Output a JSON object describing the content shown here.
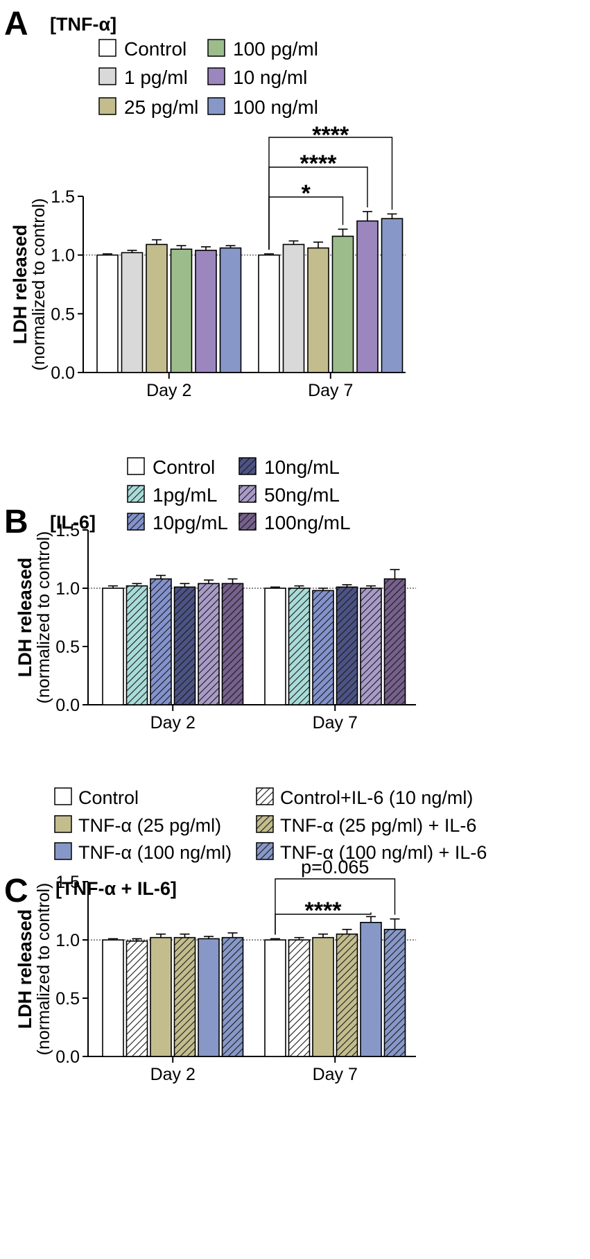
{
  "figure": {
    "panels": [
      {
        "letter": "A",
        "title": "[TNF-α]"
      },
      {
        "letter": "B",
        "title": "[IL-6]"
      },
      {
        "letter": "C",
        "title": "[TNF-α + IL-6]"
      }
    ]
  },
  "chart_data": [
    {
      "type": "bar",
      "panel": "A",
      "title": "[TNF-α]",
      "ylabel": "LDH released",
      "ylabel_sub": "(normalized to control)",
      "xlabel": "",
      "ylim": [
        0,
        1.5
      ],
      "yticks": [
        "0.0",
        "0.5",
        "1.0",
        "1.5"
      ],
      "reference_line": 1.0,
      "categories": [
        "Day 2",
        "Day 7"
      ],
      "series": [
        {
          "name": "Control",
          "color": "#ffffff",
          "pattern": "solid",
          "values": [
            1.0,
            1.0
          ],
          "errors": [
            0.01,
            0.01
          ]
        },
        {
          "name": "1 pg/ml",
          "color": "#d9d9d9",
          "pattern": "solid",
          "values": [
            1.02,
            1.09
          ],
          "errors": [
            0.02,
            0.03
          ]
        },
        {
          "name": "25 pg/ml",
          "color": "#c3bd8e",
          "pattern": "solid",
          "values": [
            1.09,
            1.06
          ],
          "errors": [
            0.04,
            0.05
          ]
        },
        {
          "name": "100 pg/ml",
          "color": "#9cbc8c",
          "pattern": "solid",
          "values": [
            1.05,
            1.16
          ],
          "errors": [
            0.03,
            0.06
          ]
        },
        {
          "name": "10 ng/ml",
          "color": "#9b86be",
          "pattern": "solid",
          "values": [
            1.04,
            1.29
          ],
          "errors": [
            0.03,
            0.08
          ]
        },
        {
          "name": "100 ng/ml",
          "color": "#8798c8",
          "pattern": "solid",
          "values": [
            1.06,
            1.31
          ],
          "errors": [
            0.02,
            0.04
          ]
        }
      ],
      "annotations": [
        {
          "group": 1,
          "from_series": 0,
          "to_series": 3,
          "label": "*"
        },
        {
          "group": 1,
          "from_series": 0,
          "to_series": 4,
          "label": "****"
        },
        {
          "group": 1,
          "from_series": 0,
          "to_series": 5,
          "label": "****"
        }
      ]
    },
    {
      "type": "bar",
      "panel": "B",
      "title": "[IL-6]",
      "ylabel": "LDH released",
      "ylabel_sub": "(normalized to control)",
      "xlabel": "",
      "ylim": [
        0,
        1.5
      ],
      "yticks": [
        "0.0",
        "0.5",
        "1.0",
        "1.5"
      ],
      "reference_line": 1.0,
      "categories": [
        "Day 2",
        "Day 7"
      ],
      "series": [
        {
          "name": "Control",
          "color": "#ffffff",
          "pattern": "solid",
          "values": [
            1.0,
            1.0
          ],
          "errors": [
            0.02,
            0.01
          ]
        },
        {
          "name": "1pg/mL",
          "color": "#a8dcd8",
          "pattern": "hatch",
          "values": [
            1.02,
            1.0
          ],
          "errors": [
            0.02,
            0.02
          ]
        },
        {
          "name": "10pg/mL",
          "color": "#8392cc",
          "pattern": "hatch",
          "values": [
            1.08,
            0.98
          ],
          "errors": [
            0.03,
            0.02
          ]
        },
        {
          "name": "10ng/mL",
          "color": "#4c5384",
          "pattern": "hatch",
          "values": [
            1.01,
            1.01
          ],
          "errors": [
            0.03,
            0.02
          ]
        },
        {
          "name": "50ng/mL",
          "color": "#a99bc8",
          "pattern": "hatch",
          "values": [
            1.04,
            1.0
          ],
          "errors": [
            0.03,
            0.02
          ]
        },
        {
          "name": "100ng/mL",
          "color": "#76608c",
          "pattern": "hatch",
          "values": [
            1.04,
            1.08
          ],
          "errors": [
            0.04,
            0.08
          ]
        }
      ],
      "annotations": []
    },
    {
      "type": "bar",
      "panel": "C",
      "title": "[TNF-α + IL-6]",
      "ylabel": "LDH released",
      "ylabel_sub": "(normalized to control)",
      "xlabel": "",
      "ylim": [
        0,
        1.5
      ],
      "yticks": [
        "0.0",
        "0.5",
        "1.0",
        "1.5"
      ],
      "reference_line": 1.0,
      "categories": [
        "Day 2",
        "Day 7"
      ],
      "series": [
        {
          "name": "Control",
          "color": "#ffffff",
          "pattern": "solid",
          "values": [
            1.0,
            1.0
          ],
          "errors": [
            0.01,
            0.01
          ]
        },
        {
          "name": "Control+IL-6 (10 ng/ml)",
          "color": "#ffffff",
          "pattern": "hatch",
          "values": [
            0.99,
            1.0
          ],
          "errors": [
            0.02,
            0.02
          ]
        },
        {
          "name": "TNF-α (25 pg/ml)",
          "color": "#c3bd8e",
          "pattern": "solid",
          "values": [
            1.02,
            1.02
          ],
          "errors": [
            0.03,
            0.03
          ]
        },
        {
          "name": "TNF-α (25 pg/ml) + IL-6",
          "color": "#c3bd8e",
          "pattern": "hatch",
          "values": [
            1.02,
            1.05
          ],
          "errors": [
            0.03,
            0.04
          ]
        },
        {
          "name": "TNF-α (100 ng/ml)",
          "color": "#8798c8",
          "pattern": "solid",
          "values": [
            1.01,
            1.15
          ],
          "errors": [
            0.02,
            0.05
          ]
        },
        {
          "name": "TNF-α (100 ng/ml) + IL-6",
          "color": "#8798c8",
          "pattern": "hatch",
          "values": [
            1.02,
            1.09
          ],
          "errors": [
            0.04,
            0.09
          ]
        }
      ],
      "legend_order": [
        0,
        2,
        4,
        1,
        3,
        5
      ],
      "annotations": [
        {
          "group": 1,
          "from_series": 0,
          "to_series": 4,
          "label": "****"
        },
        {
          "group": 1,
          "from_series": 0,
          "to_series": 5,
          "label": "p=0.065"
        }
      ]
    }
  ]
}
